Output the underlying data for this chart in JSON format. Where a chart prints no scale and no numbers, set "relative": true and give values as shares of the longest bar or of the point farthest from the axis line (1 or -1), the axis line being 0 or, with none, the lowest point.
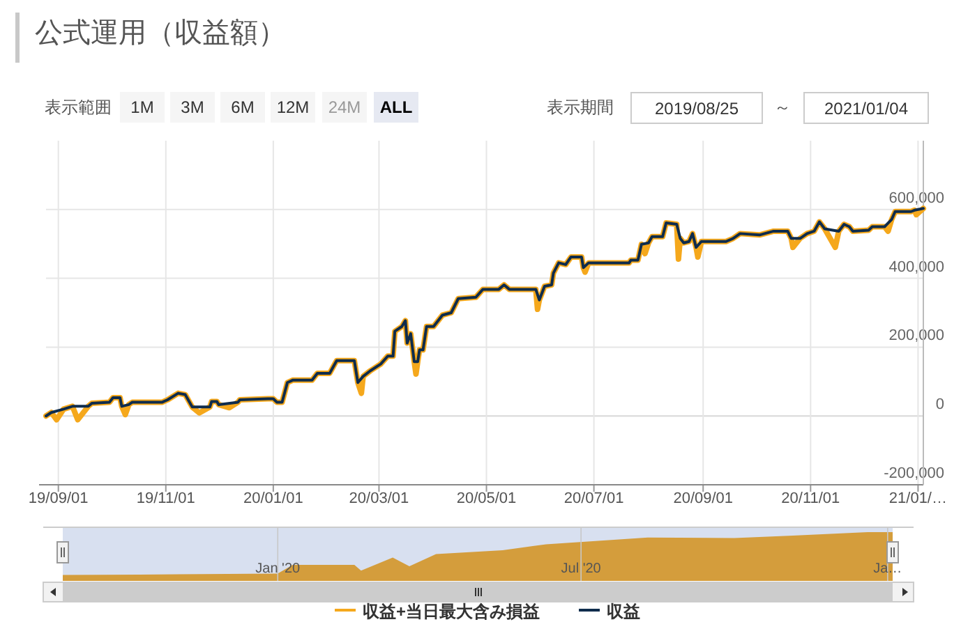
{
  "chart_data": [
    {
      "type": "line",
      "title": "公式運用（収益額）",
      "annotations": [
        "表示範囲",
        "1M",
        "3M",
        "6M",
        "12M",
        "24M",
        "ALL",
        "表示期間",
        "2019/08/25",
        "～",
        "2021/01/04"
      ],
      "xlim": [
        "2019-08-25",
        "2021-01-04"
      ],
      "xticks": [
        {
          "value": "2019-09-01",
          "label": "19/09/01"
        },
        {
          "value": "2019-11-01",
          "label": "19/11/01"
        },
        {
          "value": "2020-01-01",
          "label": "20/01/01"
        },
        {
          "value": "2020-03-01",
          "label": "20/03/01"
        },
        {
          "value": "2020-05-01",
          "label": "20/05/01"
        },
        {
          "value": "2020-07-01",
          "label": "20/07/01"
        },
        {
          "value": "2020-09-01",
          "label": "20/09/01"
        },
        {
          "value": "2020-11-01",
          "label": "20/11/01"
        },
        {
          "value": "2021-01-01",
          "label": "21/01/…"
        }
      ],
      "ylim": [
        -200000,
        800000
      ],
      "yticks": [
        {
          "value": -200000,
          "label": "-200,000"
        },
        {
          "value": 0,
          "label": "0"
        },
        {
          "value": 200000,
          "label": "200,000"
        },
        {
          "value": 400000,
          "label": "400,000"
        },
        {
          "value": 600000,
          "label": "600,000"
        }
      ],
      "grid": true,
      "legend": "bottom",
      "marker": "none",
      "line_style": "solid",
      "series": [
        {
          "name": "収益+当日最大含み損益",
          "color": "#f5a81c",
          "x": [
            "2019-08-25",
            "2019-08-28",
            "2019-08-31",
            "2019-09-04",
            "2019-09-09",
            "2019-09-12",
            "2019-09-18",
            "2019-09-20",
            "2019-09-30",
            "2019-10-02",
            "2019-10-06",
            "2019-10-07",
            "2019-10-09",
            "2019-10-11",
            "2019-10-13",
            "2019-10-30",
            "2019-11-02",
            "2019-11-08",
            "2019-11-12",
            "2019-11-16",
            "2019-11-20",
            "2019-11-26",
            "2019-11-27",
            "2019-11-30",
            "2019-12-01",
            "2019-12-07",
            "2019-12-12",
            "2019-12-13",
            "2019-12-29",
            "2020-01-01",
            "2020-01-03",
            "2020-01-06",
            "2020-01-09",
            "2020-01-12",
            "2020-01-23",
            "2020-01-26",
            "2020-02-02",
            "2020-02-06",
            "2020-02-16",
            "2020-02-18",
            "2020-02-20",
            "2020-02-21",
            "2020-02-25",
            "2020-03-02",
            "2020-03-06",
            "2020-03-09",
            "2020-03-10",
            "2020-03-14",
            "2020-03-16",
            "2020-03-17",
            "2020-03-19",
            "2020-03-21",
            "2020-03-22",
            "2020-03-23",
            "2020-03-24",
            "2020-03-26",
            "2020-03-28",
            "2020-04-01",
            "2020-04-06",
            "2020-04-11",
            "2020-04-15",
            "2020-04-25",
            "2020-04-29",
            "2020-05-08",
            "2020-05-11",
            "2020-05-14",
            "2020-05-29",
            "2020-05-30",
            "2020-05-31",
            "2020-06-03",
            "2020-06-07",
            "2020-06-08",
            "2020-06-11",
            "2020-06-15",
            "2020-06-18",
            "2020-06-24",
            "2020-06-25",
            "2020-06-26",
            "2020-06-28",
            "2020-07-21",
            "2020-07-22",
            "2020-07-26",
            "2020-07-28",
            "2020-07-30",
            "2020-08-01",
            "2020-08-03",
            "2020-08-09",
            "2020-08-11",
            "2020-08-17",
            "2020-08-18",
            "2020-08-19",
            "2020-08-21",
            "2020-08-24",
            "2020-08-26",
            "2020-08-28",
            "2020-08-29",
            "2020-08-31",
            "2020-09-14",
            "2020-09-18",
            "2020-09-22",
            "2020-10-03",
            "2020-10-11",
            "2020-10-19",
            "2020-10-21",
            "2020-10-22",
            "2020-10-26",
            "2020-10-30",
            "2020-11-03",
            "2020-11-06",
            "2020-11-09",
            "2020-11-15",
            "2020-11-17",
            "2020-11-20",
            "2020-11-23",
            "2020-11-25",
            "2020-12-04",
            "2020-12-06",
            "2020-12-13",
            "2020-12-15",
            "2020-12-17",
            "2020-12-19",
            "2020-12-28",
            "2020-12-30",
            "2020-12-31",
            "2021-01-04"
          ],
          "values": [
            0,
            10000,
            -11000,
            20000,
            28000,
            -11000,
            28000,
            37000,
            40000,
            53000,
            53000,
            28000,
            4000,
            33000,
            40000,
            40000,
            47000,
            66000,
            62000,
            26000,
            9000,
            26000,
            42000,
            42000,
            33000,
            24000,
            40000,
            47000,
            50000,
            50000,
            40000,
            40000,
            97000,
            104000,
            104000,
            124000,
            124000,
            161000,
            161000,
            97000,
            66000,
            115000,
            131000,
            151000,
            174000,
            174000,
            246000,
            260000,
            277000,
            212000,
            239000,
            158000,
            122000,
            158000,
            192000,
            192000,
            260000,
            260000,
            293000,
            300000,
            341000,
            345000,
            368000,
            368000,
            381000,
            368000,
            368000,
            310000,
            337000,
            377000,
            381000,
            415000,
            445000,
            440000,
            462000,
            462000,
            431000,
            418000,
            445000,
            445000,
            453000,
            453000,
            499000,
            472000,
            503000,
            521000,
            521000,
            561000,
            557000,
            456000,
            516000,
            503000,
            507000,
            530000,
            490000,
            462000,
            507000,
            507000,
            516000,
            530000,
            526000,
            537000,
            537000,
            516000,
            490000,
            516000,
            530000,
            537000,
            564000,
            544000,
            490000,
            537000,
            557000,
            550000,
            537000,
            540000,
            550000,
            550000,
            537000,
            571000,
            594000,
            594000,
            598000,
            585000,
            603000
          ]
        },
        {
          "name": "収益",
          "color": "#0f2c4c",
          "x": [
            "2019-08-25",
            "2019-08-28",
            "2019-09-04",
            "2019-09-09",
            "2019-09-18",
            "2019-09-20",
            "2019-09-30",
            "2019-10-02",
            "2019-10-06",
            "2019-10-07",
            "2019-10-11",
            "2019-10-13",
            "2019-10-30",
            "2019-11-02",
            "2019-11-08",
            "2019-11-12",
            "2019-11-16",
            "2019-11-26",
            "2019-11-27",
            "2019-11-30",
            "2019-12-01",
            "2019-12-12",
            "2019-12-13",
            "2019-12-29",
            "2020-01-01",
            "2020-01-03",
            "2020-01-06",
            "2020-01-09",
            "2020-01-12",
            "2020-01-23",
            "2020-01-26",
            "2020-02-02",
            "2020-02-06",
            "2020-02-16",
            "2020-02-18",
            "2020-02-21",
            "2020-02-25",
            "2020-03-02",
            "2020-03-06",
            "2020-03-09",
            "2020-03-10",
            "2020-03-14",
            "2020-03-16",
            "2020-03-17",
            "2020-03-19",
            "2020-03-21",
            "2020-03-23",
            "2020-03-24",
            "2020-03-26",
            "2020-03-28",
            "2020-04-01",
            "2020-04-06",
            "2020-04-11",
            "2020-04-15",
            "2020-04-25",
            "2020-04-29",
            "2020-05-08",
            "2020-05-11",
            "2020-05-14",
            "2020-05-29",
            "2020-05-31",
            "2020-06-03",
            "2020-06-07",
            "2020-06-08",
            "2020-06-11",
            "2020-06-15",
            "2020-06-18",
            "2020-06-24",
            "2020-06-25",
            "2020-06-28",
            "2020-07-21",
            "2020-07-22",
            "2020-07-26",
            "2020-07-28",
            "2020-08-01",
            "2020-08-03",
            "2020-08-09",
            "2020-08-11",
            "2020-08-17",
            "2020-08-19",
            "2020-08-21",
            "2020-08-24",
            "2020-08-26",
            "2020-08-28",
            "2020-08-31",
            "2020-09-14",
            "2020-09-18",
            "2020-09-22",
            "2020-10-03",
            "2020-10-11",
            "2020-10-19",
            "2020-10-21",
            "2020-10-26",
            "2020-10-30",
            "2020-11-03",
            "2020-11-06",
            "2020-11-09",
            "2020-11-17",
            "2020-11-20",
            "2020-11-23",
            "2020-11-25",
            "2020-12-04",
            "2020-12-06",
            "2020-12-13",
            "2020-12-17",
            "2020-12-19",
            "2020-12-28",
            "2020-12-30",
            "2021-01-04"
          ],
          "values": [
            0,
            10000,
            20000,
            28000,
            28000,
            37000,
            40000,
            53000,
            53000,
            28000,
            33000,
            40000,
            40000,
            47000,
            66000,
            62000,
            26000,
            26000,
            42000,
            42000,
            33000,
            40000,
            47000,
            50000,
            50000,
            40000,
            40000,
            97000,
            104000,
            104000,
            124000,
            124000,
            161000,
            161000,
            97000,
            115000,
            131000,
            151000,
            174000,
            174000,
            246000,
            260000,
            277000,
            212000,
            239000,
            158000,
            158000,
            192000,
            192000,
            260000,
            260000,
            293000,
            300000,
            341000,
            345000,
            368000,
            368000,
            381000,
            368000,
            368000,
            337000,
            377000,
            381000,
            415000,
            445000,
            440000,
            462000,
            462000,
            431000,
            445000,
            445000,
            453000,
            453000,
            499000,
            503000,
            521000,
            521000,
            561000,
            557000,
            516000,
            503000,
            507000,
            530000,
            490000,
            507000,
            507000,
            516000,
            530000,
            526000,
            537000,
            537000,
            516000,
            516000,
            530000,
            537000,
            564000,
            544000,
            537000,
            557000,
            550000,
            537000,
            540000,
            550000,
            550000,
            571000,
            594000,
            594000,
            598000,
            603000
          ]
        }
      ]
    },
    {
      "type": "area",
      "relative": true,
      "color": "#d49d3c",
      "tick_labels": "x",
      "grid": "x",
      "xlim": [
        "2019-08-25",
        "2021-01-04"
      ],
      "xticks": [
        {
          "value": "2020-01-01",
          "label": "Jan '20"
        },
        {
          "value": "2020-07-01",
          "label": "Jul '20"
        },
        {
          "value": "2021-01-01",
          "label": "Ja…"
        }
      ],
      "x": [
        "2019-08-25",
        "2019-10-10",
        "2020-01-01",
        "2020-01-10",
        "2020-02-16",
        "2020-02-20",
        "2020-03-10",
        "2020-03-20",
        "2020-04-05",
        "2020-05-15",
        "2020-06-10",
        "2020-08-10",
        "2020-10-01",
        "2020-11-05",
        "2020-12-20",
        "2021-01-04"
      ],
      "values": [
        0.12,
        0.13,
        0.15,
        0.33,
        0.33,
        0.21,
        0.48,
        0.3,
        0.55,
        0.63,
        0.75,
        0.89,
        0.88,
        0.93,
        1,
        1
      ]
    }
  ]
}
